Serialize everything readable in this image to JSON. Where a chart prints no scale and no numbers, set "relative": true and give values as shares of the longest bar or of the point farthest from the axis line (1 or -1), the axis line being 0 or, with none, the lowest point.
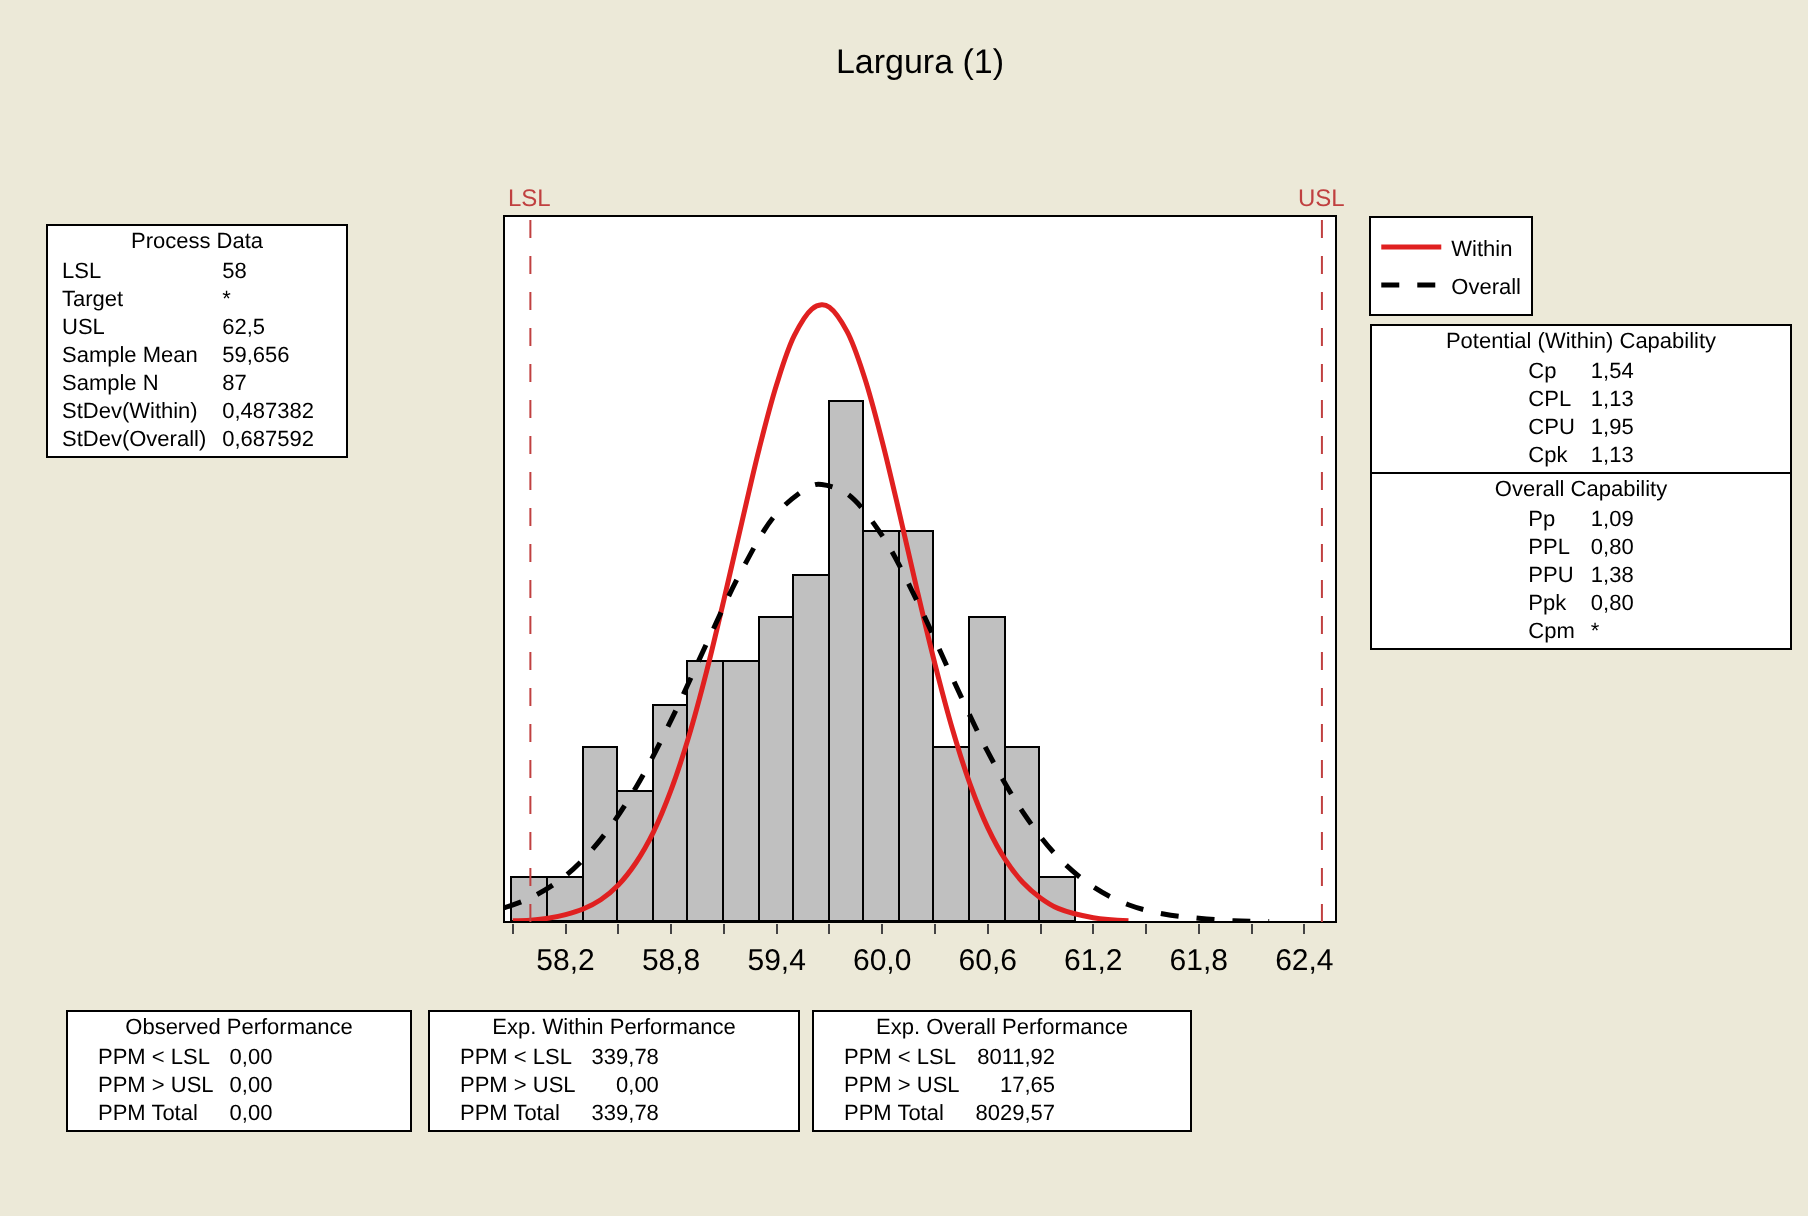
{
  "chart_data": {
    "type": "histogram",
    "title": "Largura (1)",
    "relative": true,
    "bins": [
      57.9,
      58.1,
      58.3,
      58.5,
      58.7,
      58.9,
      59.1,
      59.3,
      59.5,
      59.7,
      59.9,
      60.1,
      60.3,
      60.5,
      60.7,
      60.9,
      61.1
    ],
    "values": [
      0.07,
      0.07,
      0.281,
      0.211,
      0.351,
      0.421,
      0.421,
      0.492,
      0.562,
      0.843,
      0.632,
      0.632,
      0.281,
      0.492,
      0.281,
      0.07
    ],
    "color": "#c0c0c0",
    "series": [
      {
        "name": "Within",
        "type": "line",
        "color": "#e02020",
        "line_style": "solid",
        "x": [
          57.9,
          58.0,
          58.1,
          58.2,
          58.3,
          58.4,
          58.5,
          58.6,
          58.7,
          58.8,
          58.9,
          59.0,
          59.1,
          59.2,
          59.3,
          59.4,
          59.5,
          59.6,
          59.656,
          59.7,
          59.8,
          59.9,
          60.0,
          60.1,
          60.2,
          60.3,
          60.4,
          60.5,
          60.6,
          60.7,
          60.8,
          60.9,
          61.0,
          61.2,
          61.4
        ],
        "values": [
          0.002,
          0.003,
          0.006,
          0.012,
          0.021,
          0.036,
          0.06,
          0.096,
          0.146,
          0.214,
          0.3,
          0.404,
          0.522,
          0.645,
          0.766,
          0.871,
          0.95,
          0.993,
          1.0,
          0.996,
          0.957,
          0.882,
          0.779,
          0.66,
          0.536,
          0.418,
          0.312,
          0.223,
          0.153,
          0.101,
          0.064,
          0.039,
          0.022,
          0.007,
          0.002
        ]
      },
      {
        "name": "Overall",
        "type": "line",
        "color": "#000000",
        "line_style": "dashed",
        "x": [
          57.85,
          58.0,
          58.2,
          58.4,
          58.6,
          58.8,
          59.0,
          59.2,
          59.4,
          59.6,
          59.656,
          59.8,
          60.0,
          60.2,
          60.4,
          60.6,
          60.8,
          61.0,
          61.2,
          61.4,
          61.6,
          61.8,
          62.0,
          62.2
        ],
        "values": [
          0.023,
          0.039,
          0.075,
          0.134,
          0.218,
          0.327,
          0.45,
          0.569,
          0.662,
          0.707,
          0.709,
          0.694,
          0.626,
          0.519,
          0.395,
          0.276,
          0.178,
          0.105,
          0.057,
          0.028,
          0.013,
          0.006,
          0.002,
          0.001
        ]
      }
    ],
    "xlim": [
      57.85,
      62.58
    ],
    "xticks": [
      {
        "value": 57.9,
        "label": null
      },
      {
        "value": 58.2,
        "label": "58,2"
      },
      {
        "value": 58.5,
        "label": null
      },
      {
        "value": 58.8,
        "label": "58,8"
      },
      {
        "value": 59.1,
        "label": null
      },
      {
        "value": 59.4,
        "label": "59,4"
      },
      {
        "value": 59.7,
        "label": null
      },
      {
        "value": 60.0,
        "label": "60,0"
      },
      {
        "value": 60.3,
        "label": null
      },
      {
        "value": 60.6,
        "label": "60,6"
      },
      {
        "value": 60.9,
        "label": null
      },
      {
        "value": 61.2,
        "label": "61,2"
      },
      {
        "value": 61.5,
        "label": null
      },
      {
        "value": 61.8,
        "label": "61,8"
      },
      {
        "value": 62.1,
        "label": null
      },
      {
        "value": 62.4,
        "label": "62,4"
      }
    ],
    "ref_lines": [
      {
        "axis": "x",
        "value": 58,
        "label": "LSL",
        "color": "#c04040",
        "line_style": "dashed"
      },
      {
        "axis": "x",
        "value": 62.5,
        "label": "USL",
        "color": "#c04040",
        "line_style": "dashed"
      }
    ],
    "grid": false,
    "legend": "right",
    "annotations": [
      "Process Data\nLSL\t58\nTarget\t*\nUSL\t62,5\nSample Mean\t59,656\nSample N\t87\nStDev(Within)\t0,487382\nStDev(Overall)\t0,687592",
      "Potential (Within) Capability\nCp\t1,54\nCPL\t1,13\nCPU\t1,95\nCpk\t1,13",
      "Overall Capability\nPp\t1,09\nPPL\t0,80\nPPU\t1,38\nPpk\t0,80\nCpm\t*",
      "Observed Performance\nPPM < LSL\t0,00\nPPM > USL\t0,00\nPPM Total\t0,00",
      "Exp. Within Performance\nPPM < LSL\t339,78\nPPM > USL\t0,00\nPPM Total\t339,78",
      "Exp. Overall Performance\nPPM < LSL\t8011,92\nPPM > USL\t17,65\nPPM Total\t8029,57"
    ]
  }
}
